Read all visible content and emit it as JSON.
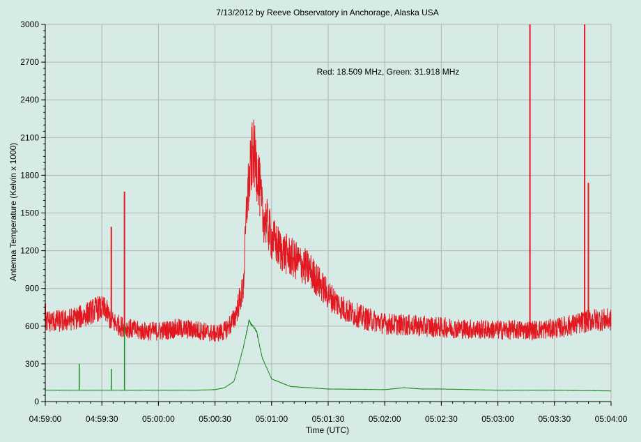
{
  "chart_data": {
    "type": "line",
    "title": "7/13/2012  by  Reeve Observatory  in  Anchorage, Alaska  USA",
    "xlabel": "Time (UTC)",
    "ylabel": "Antenna Temperature (Kelvin x 1000)",
    "annotation": "Red: 18.509 MHz, Green: 31.918 MHz",
    "x_ticks": [
      "04:59:00",
      "04:59:30",
      "05:00:00",
      "05:00:30",
      "05:01:00",
      "05:01:30",
      "05:02:00",
      "05:02:30",
      "05:03:00",
      "05:03:30",
      "05:04:00"
    ],
    "y_ticks": [
      0,
      300,
      600,
      900,
      1200,
      1500,
      1800,
      2100,
      2400,
      2700,
      3000
    ],
    "xlim": [
      "04:59:00",
      "05:04:00"
    ],
    "ylim": [
      0,
      3000
    ],
    "grid": true,
    "colors": {
      "background": "#d6ebe6",
      "grid": "#b4b4b4",
      "red": "#e3171f",
      "green": "#1b8a1b"
    },
    "series": [
      {
        "name": "Red: 18.509 MHz",
        "color": "#e3171f",
        "x": [
          "04:59:00",
          "04:59:10",
          "04:59:20",
          "04:59:25",
          "04:59:28",
          "04:59:32",
          "04:59:35",
          "04:59:40",
          "04:59:50",
          "05:00:00",
          "05:00:10",
          "05:00:20",
          "05:00:30",
          "05:00:35",
          "05:00:40",
          "05:00:45",
          "05:00:47",
          "05:00:50",
          "05:00:53",
          "05:00:55",
          "05:00:58",
          "05:01:00",
          "05:01:05",
          "05:01:10",
          "05:01:15",
          "05:01:20",
          "05:01:25",
          "05:01:30",
          "05:01:35",
          "05:01:40",
          "05:01:45",
          "05:01:50",
          "05:02:00",
          "05:02:10",
          "05:02:20",
          "05:02:30",
          "05:02:40",
          "05:03:00",
          "05:03:20",
          "05:03:30",
          "05:03:40",
          "05:03:50",
          "05:04:00"
        ],
        "y": [
          640,
          640,
          680,
          720,
          740,
          730,
          640,
          600,
          560,
          560,
          580,
          570,
          540,
          560,
          650,
          900,
          1600,
          2000,
          1800,
          1500,
          1400,
          1300,
          1200,
          1150,
          1100,
          1050,
          950,
          850,
          780,
          720,
          690,
          660,
          620,
          610,
          600,
          590,
          580,
          570,
          570,
          580,
          610,
          650,
          650
        ]
      },
      {
        "name": "Green: 31.918 MHz",
        "color": "#1b8a1b",
        "x": [
          "04:59:00",
          "04:59:10",
          "04:59:30",
          "05:00:00",
          "05:00:20",
          "05:00:30",
          "05:00:35",
          "05:00:40",
          "05:00:42",
          "05:00:45",
          "05:00:48",
          "05:00:52",
          "05:00:55",
          "05:01:00",
          "05:01:10",
          "05:01:30",
          "05:02:00",
          "05:02:10",
          "05:02:20",
          "05:02:30",
          "05:03:00",
          "05:03:30",
          "05:04:00"
        ],
        "y": [
          90,
          90,
          90,
          90,
          90,
          95,
          110,
          160,
          260,
          430,
          640,
          560,
          350,
          180,
          120,
          100,
          95,
          110,
          100,
          100,
          90,
          90,
          85
        ]
      }
    ],
    "spikes": [
      {
        "series": "Red: 18.509 MHz",
        "x": "04:59:00",
        "y": 780
      },
      {
        "series": "Red: 18.509 MHz",
        "x": "04:59:35",
        "y": 1390
      },
      {
        "series": "Red: 18.509 MHz",
        "x": "04:59:42",
        "y": 1670
      },
      {
        "series": "Red: 18.509 MHz",
        "x": "05:03:17",
        "y": 3000
      },
      {
        "series": "Red: 18.509 MHz",
        "x": "05:03:46",
        "y": 3000
      },
      {
        "series": "Red: 18.509 MHz",
        "x": "05:03:48",
        "y": 1740
      },
      {
        "series": "Green: 31.918 MHz",
        "x": "04:59:18",
        "y": 300
      },
      {
        "series": "Green: 31.918 MHz",
        "x": "04:59:35",
        "y": 260
      },
      {
        "series": "Green: 31.918 MHz",
        "x": "04:59:42",
        "y": 600
      }
    ]
  }
}
